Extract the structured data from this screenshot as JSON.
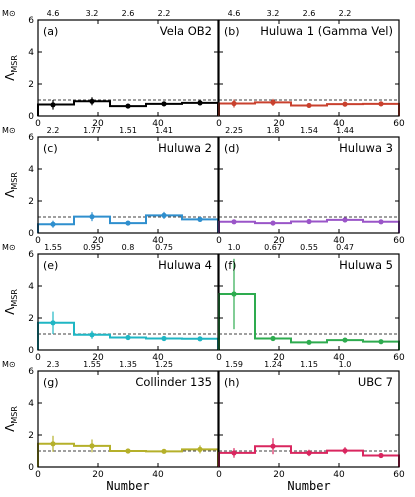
{
  "chart_data": {
    "type": "step-histogram",
    "ylabel": "Λ_MSR",
    "xlabel": "Number",
    "xlim": [
      0,
      60
    ],
    "ylim": [
      0,
      6
    ],
    "xticks": [
      0,
      20,
      40,
      60
    ],
    "yticks": [
      0,
      2,
      4,
      6
    ],
    "mass_axis_symbol": "M⊙",
    "reference_line": 1.0,
    "panels": [
      {
        "label": "(a)",
        "name": "Vela OB2",
        "color": "#000000",
        "edges": [
          0,
          12,
          24,
          36,
          48,
          60
        ],
        "values": [
          0.72,
          0.92,
          0.62,
          0.76,
          0.82
        ],
        "points_x": [
          5,
          18,
          30,
          42,
          54
        ],
        "points_y": [
          0.7,
          0.92,
          0.62,
          0.76,
          0.82
        ],
        "errors": [
          0.3,
          0.25,
          0.1,
          0.1,
          0.08
        ],
        "mass_ticks": [
          "4.6",
          "3.2",
          "2.6",
          "2.2"
        ],
        "mass_tick_x": [
          5,
          18,
          30,
          42
        ],
        "mass_symbol_shown": true
      },
      {
        "label": "(b)",
        "name": "Huluwa 1 (Gamma Vel)",
        "color": "#c9412e",
        "edges": [
          0,
          12,
          24,
          36,
          48,
          60
        ],
        "values": [
          0.78,
          0.85,
          0.66,
          0.74,
          0.76
        ],
        "points_x": [
          5,
          18,
          30,
          42,
          54
        ],
        "points_y": [
          0.78,
          0.85,
          0.66,
          0.74,
          0.76
        ],
        "errors": [
          0.25,
          0.22,
          0.1,
          0.08,
          0.08
        ],
        "mass_ticks": [
          "4.6",
          "3.2",
          "2.6",
          "2.2"
        ],
        "mass_tick_x": [
          5,
          18,
          30,
          42
        ],
        "mass_symbol_shown": false
      },
      {
        "label": "(c)",
        "name": "Huluwa 2",
        "color": "#2f8fce",
        "edges": [
          0,
          12,
          24,
          36,
          48,
          60
        ],
        "values": [
          0.55,
          1.02,
          0.62,
          1.1,
          0.85
        ],
        "points_x": [
          5,
          18,
          30,
          42,
          54
        ],
        "points_y": [
          0.55,
          1.02,
          0.62,
          1.1,
          0.85
        ],
        "errors": [
          0.22,
          0.28,
          0.12,
          0.22,
          0.12
        ],
        "mass_ticks": [
          "2.2",
          "1.77",
          "1.51",
          "1.41"
        ],
        "mass_tick_x": [
          5,
          18,
          30,
          42
        ],
        "mass_symbol_shown": true
      },
      {
        "label": "(d)",
        "name": "Huluwa 3",
        "color": "#9a55c8",
        "edges": [
          0,
          12,
          24,
          36,
          48,
          60
        ],
        "values": [
          0.7,
          0.62,
          0.72,
          0.82,
          0.7
        ],
        "points_x": [
          5,
          18,
          30,
          42,
          54
        ],
        "points_y": [
          0.7,
          0.62,
          0.72,
          0.82,
          0.7
        ],
        "errors": [
          0.1,
          0.1,
          0.08,
          0.1,
          0.08
        ],
        "mass_ticks": [
          "2.25",
          "1.8",
          "1.54",
          "1.44"
        ],
        "mass_tick_x": [
          5,
          18,
          30,
          42
        ],
        "mass_symbol_shown": false
      },
      {
        "label": "(e)",
        "name": "Huluwa 4",
        "color": "#1fb6c4",
        "edges": [
          0,
          12,
          24,
          36,
          48,
          60
        ],
        "values": [
          1.7,
          0.95,
          0.78,
          0.72,
          0.7
        ],
        "points_x": [
          5,
          18,
          30,
          42,
          54
        ],
        "points_y": [
          1.7,
          0.95,
          0.78,
          0.72,
          0.7
        ],
        "errors": [
          0.7,
          0.25,
          0.12,
          0.1,
          0.08
        ],
        "mass_ticks": [
          "1.55",
          "0.95",
          "0.8",
          "0.75"
        ],
        "mass_tick_x": [
          5,
          18,
          30,
          42
        ],
        "mass_symbol_shown": true
      },
      {
        "label": "(f)",
        "name": "Huluwa 5",
        "color": "#2eab4f",
        "edges": [
          0,
          12,
          24,
          36,
          48,
          60
        ],
        "values": [
          3.5,
          0.72,
          0.48,
          0.62,
          0.52
        ],
        "points_x": [
          5,
          18,
          30,
          42,
          54
        ],
        "points_y": [
          3.5,
          0.72,
          0.48,
          0.62,
          0.52
        ],
        "errors": [
          2.2,
          0.12,
          0.08,
          0.08,
          0.08
        ],
        "mass_ticks": [
          "1.0",
          "0.67",
          "0.55",
          "0.47"
        ],
        "mass_tick_x": [
          5,
          18,
          30,
          42
        ],
        "mass_symbol_shown": false
      },
      {
        "label": "(g)",
        "name": "Collinder 135",
        "color": "#b5b02a",
        "edges": [
          0,
          12,
          24,
          36,
          48,
          60
        ],
        "values": [
          1.45,
          1.32,
          1.0,
          0.98,
          1.1
        ],
        "points_x": [
          5,
          18,
          30,
          42,
          54
        ],
        "points_y": [
          1.45,
          1.32,
          1.0,
          0.98,
          1.1
        ],
        "errors": [
          0.5,
          0.4,
          0.15,
          0.12,
          0.25
        ],
        "mass_ticks": [
          "2.3",
          "1.55",
          "1.35",
          "1.25"
        ],
        "mass_tick_x": [
          5,
          18,
          30,
          42
        ],
        "mass_symbol_shown": true
      },
      {
        "label": "(h)",
        "name": "UBC 7",
        "color": "#d9265f",
        "edges": [
          0,
          12,
          24,
          36,
          48,
          60
        ],
        "values": [
          0.88,
          1.3,
          0.88,
          1.02,
          0.72
        ],
        "points_x": [
          5,
          18,
          30,
          42,
          54
        ],
        "points_y": [
          0.88,
          1.3,
          0.88,
          1.02,
          0.72
        ],
        "errors": [
          0.3,
          0.5,
          0.2,
          0.22,
          0.15
        ],
        "mass_ticks": [
          "1.59",
          "1.24",
          "1.15",
          "1.0"
        ],
        "mass_tick_x": [
          5,
          18,
          30,
          42
        ],
        "mass_symbol_shown": false
      }
    ]
  }
}
